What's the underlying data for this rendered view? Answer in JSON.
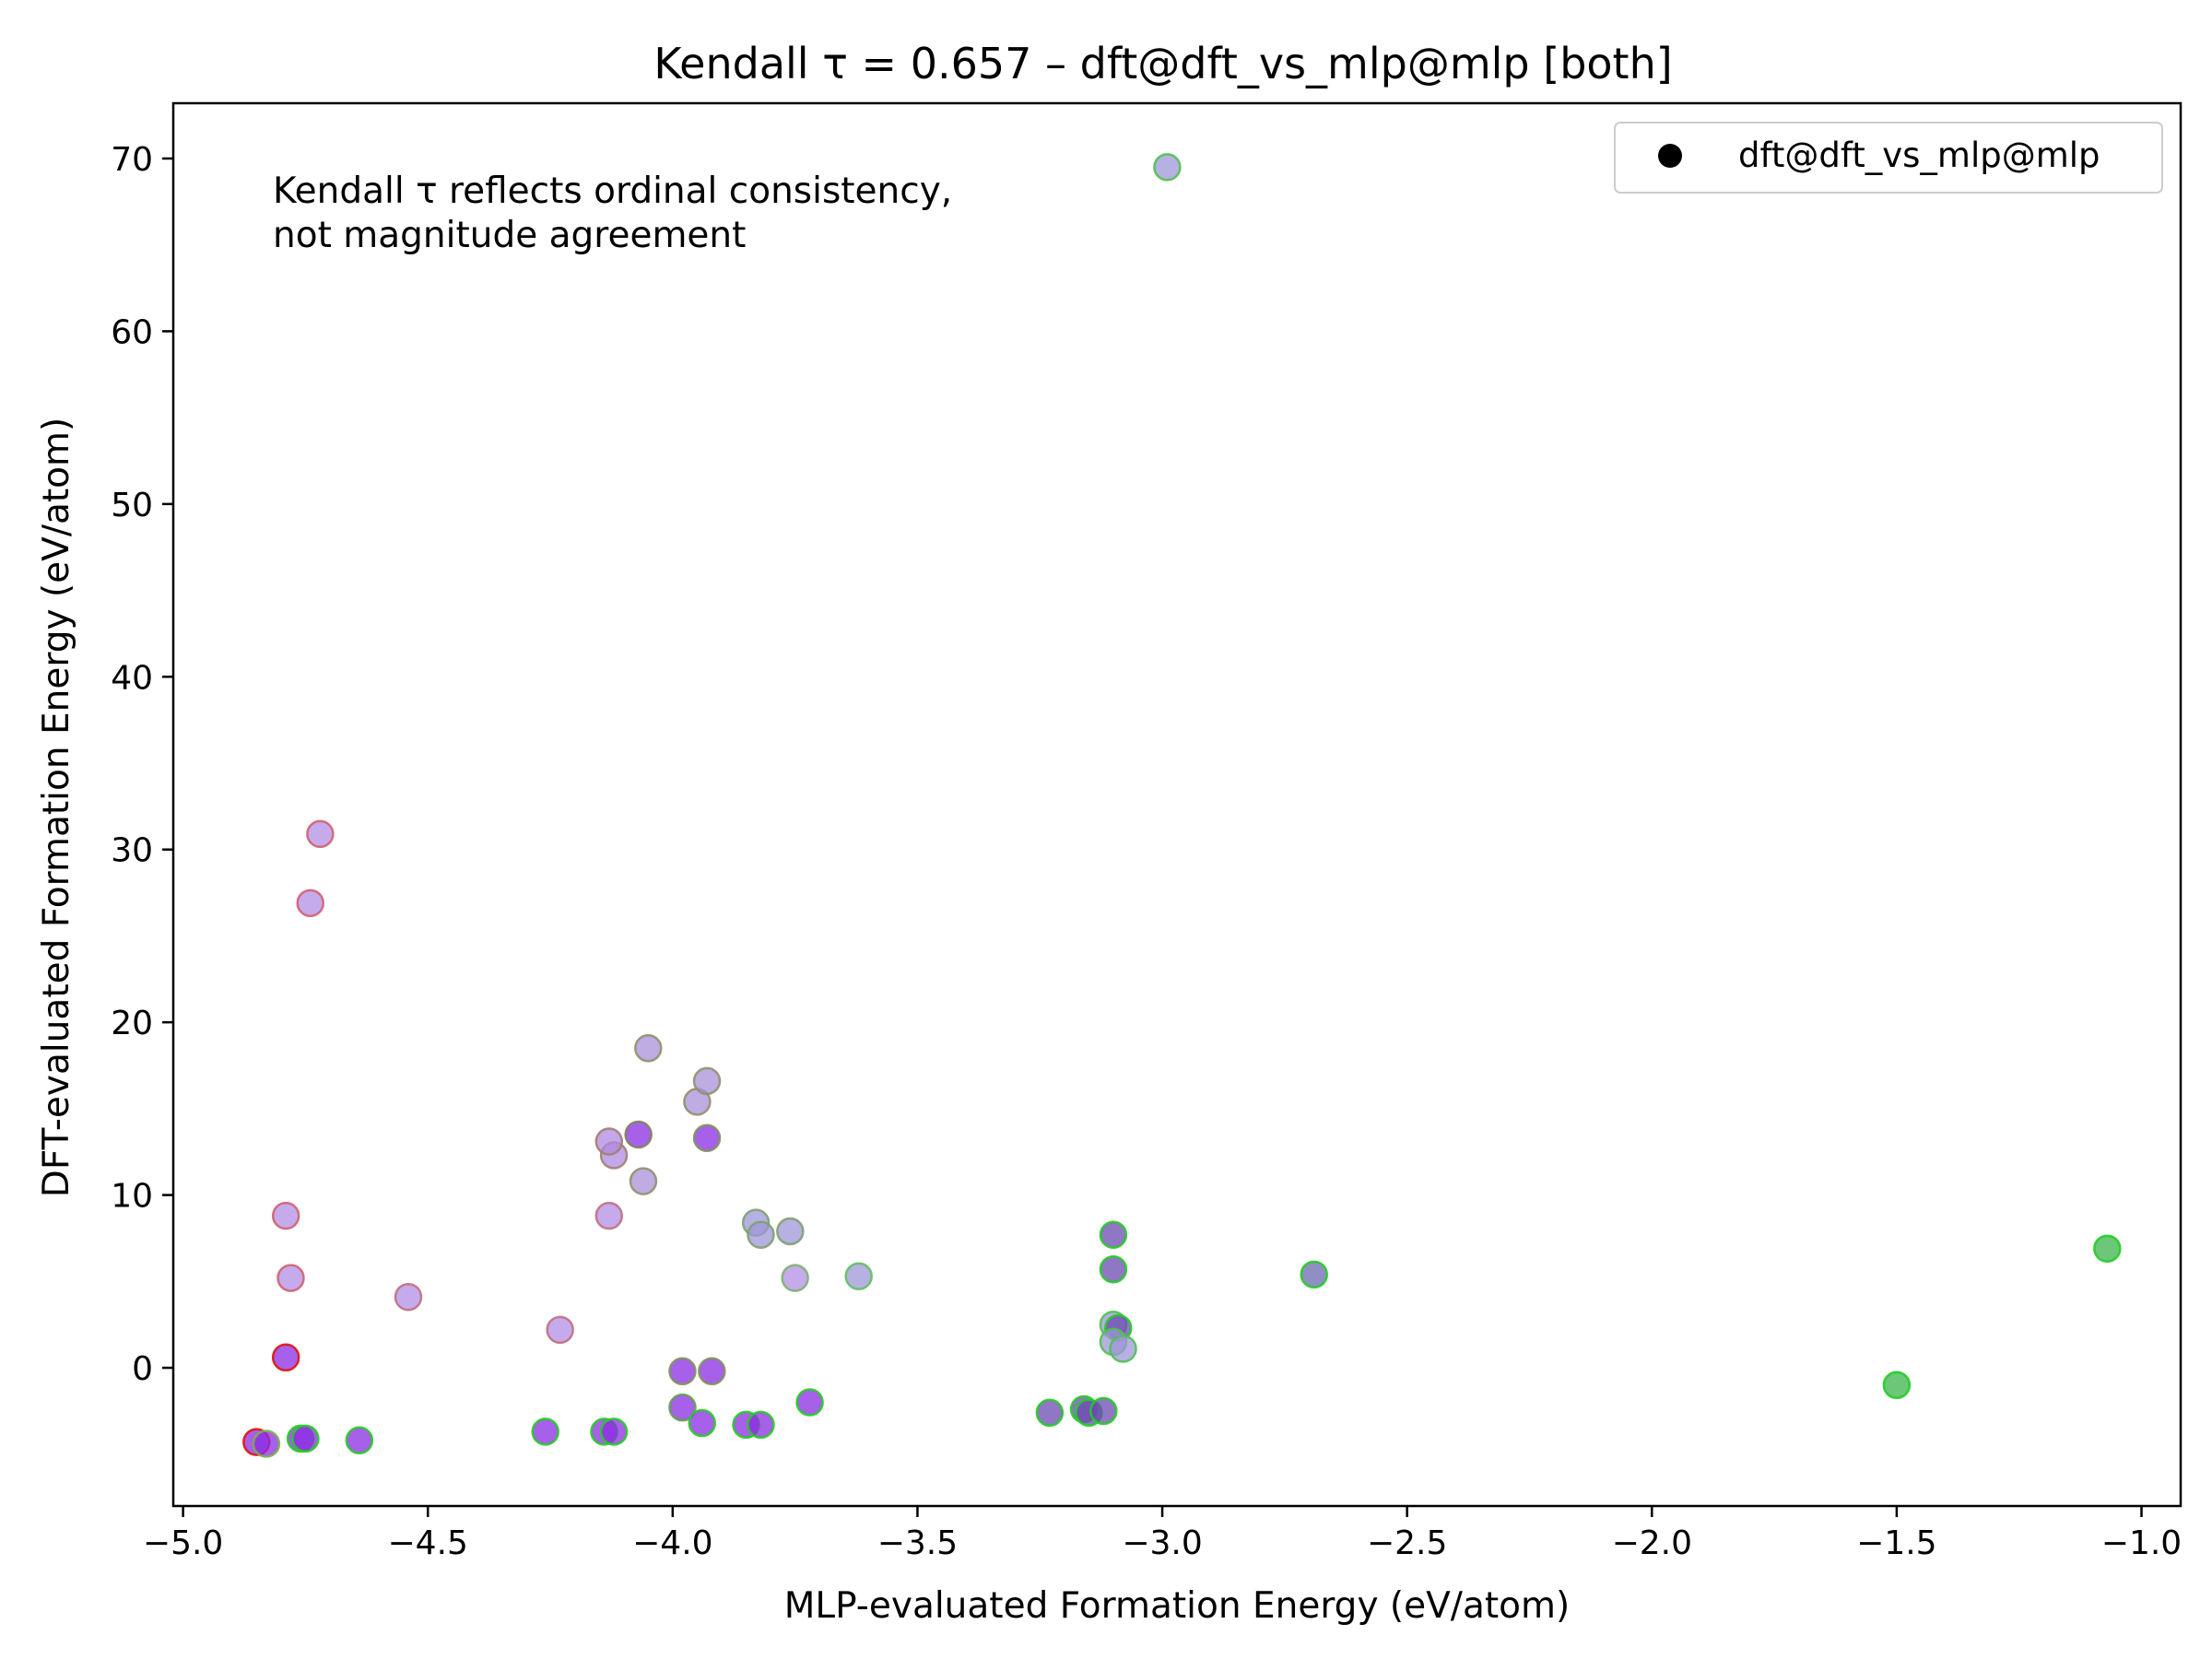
{
  "chart_data": {
    "type": "scatter",
    "title": "Kendall τ = 0.657 – dft@dft_vs_mlp@mlp [both]",
    "xlabel": "MLP-evaluated Formation Energy (eV/atom)",
    "ylabel": "DFT-evaluated Formation Energy (eV/atom)",
    "xlim": [
      -5.02,
      -0.92
    ],
    "ylim": [
      -8,
      73.2
    ],
    "xticks": [
      -5.0,
      -4.5,
      -4.0,
      -3.5,
      -3.0,
      -2.5,
      -2.0,
      -1.5,
      -1.0
    ],
    "xtick_labels": [
      "−5.0",
      "−4.5",
      "−4.0",
      "−3.5",
      "−3.0",
      "−2.5",
      "−2.0",
      "−1.5",
      "−1.0"
    ],
    "yticks": [
      0,
      10,
      20,
      30,
      40,
      50,
      60,
      70
    ],
    "ytick_labels": [
      "0",
      "10",
      "20",
      "30",
      "40",
      "50",
      "60",
      "70"
    ],
    "grid": false,
    "legend": {
      "position": "top-right",
      "entries": [
        "dft@dft_vs_mlp@mlp"
      ]
    },
    "annotation": [
      "Kendall τ reflects ordinal consistency,",
      "not magnitude agreement"
    ],
    "colors": {
      "fill_purple": "#8a2be2",
      "fill_lavender": "#b28fe6",
      "fill_gray": "#9f95d8",
      "fill_green": "#3cb44b",
      "edge_red": "#e01010",
      "edge_green": "#22cc22"
    },
    "series": [
      {
        "name": "dft@dft_vs_mlp@mlp",
        "points": [
          {
            "x": -4.85,
            "y": -4.3,
            "fill": "#8a2be2",
            "edge": "#e01010"
          },
          {
            "x": -4.83,
            "y": -4.4,
            "fill": "#8a2be2",
            "edge": "#7ab04a"
          },
          {
            "x": -4.76,
            "y": -4.1,
            "fill": "#8a2be2",
            "edge": "#22cc22"
          },
          {
            "x": -4.75,
            "y": -4.1,
            "fill": "#8a2be2",
            "edge": "#22cc22"
          },
          {
            "x": -4.64,
            "y": -4.2,
            "fill": "#8a2be2",
            "edge": "#22cc22"
          },
          {
            "x": -4.79,
            "y": 0.6,
            "fill": "#8a2be2",
            "edge": "#e01010"
          },
          {
            "x": -4.78,
            "y": 5.2,
            "fill": "#b28fe6",
            "edge": "#d06070"
          },
          {
            "x": -4.79,
            "y": 8.8,
            "fill": "#b28fe6",
            "edge": "#d06070"
          },
          {
            "x": -4.74,
            "y": 26.9,
            "fill": "#b28fe6",
            "edge": "#d06070"
          },
          {
            "x": -4.72,
            "y": 30.9,
            "fill": "#b28fe6",
            "edge": "#d06070"
          },
          {
            "x": -4.54,
            "y": 4.1,
            "fill": "#b28fe6",
            "edge": "#c07080"
          },
          {
            "x": -4.23,
            "y": 2.2,
            "fill": "#b28fe6",
            "edge": "#c07080"
          },
          {
            "x": -4.26,
            "y": -3.7,
            "fill": "#8a2be2",
            "edge": "#22cc22"
          },
          {
            "x": -4.14,
            "y": -3.7,
            "fill": "#8a2be2",
            "edge": "#22cc22"
          },
          {
            "x": -4.12,
            "y": -3.7,
            "fill": "#8a2be2",
            "edge": "#22cc22"
          },
          {
            "x": -4.13,
            "y": 8.8,
            "fill": "#b28fe6",
            "edge": "#c07080"
          },
          {
            "x": -4.12,
            "y": 12.3,
            "fill": "#b08ae0",
            "edge": "#a08070"
          },
          {
            "x": -4.13,
            "y": 13.1,
            "fill": "#b08ae0",
            "edge": "#a08070"
          },
          {
            "x": -4.07,
            "y": 13.5,
            "fill": "#8a2be2",
            "edge": "#808060"
          },
          {
            "x": -4.06,
            "y": 10.8,
            "fill": "#a890d8",
            "edge": "#909070"
          },
          {
            "x": -4.05,
            "y": 18.5,
            "fill": "#a890d8",
            "edge": "#909070"
          },
          {
            "x": -3.95,
            "y": 15.4,
            "fill": "#a890d8",
            "edge": "#909070"
          },
          {
            "x": -3.93,
            "y": 16.6,
            "fill": "#a890d8",
            "edge": "#909070"
          },
          {
            "x": -3.93,
            "y": 13.3,
            "fill": "#8a2be2",
            "edge": "#809060"
          },
          {
            "x": -3.98,
            "y": -0.2,
            "fill": "#8a2be2",
            "edge": "#809060"
          },
          {
            "x": -3.92,
            "y": -0.2,
            "fill": "#8a2be2",
            "edge": "#809060"
          },
          {
            "x": -3.98,
            "y": -2.3,
            "fill": "#8a2be2",
            "edge": "#60a050"
          },
          {
            "x": -3.94,
            "y": -3.2,
            "fill": "#8a2be2",
            "edge": "#22cc22"
          },
          {
            "x": -3.85,
            "y": -3.3,
            "fill": "#8a2be2",
            "edge": "#22cc22"
          },
          {
            "x": -3.82,
            "y": -3.3,
            "fill": "#8a2be2",
            "edge": "#22cc22"
          },
          {
            "x": -3.83,
            "y": 8.4,
            "fill": "#9f95d8",
            "edge": "#80a070"
          },
          {
            "x": -3.82,
            "y": 7.7,
            "fill": "#9f95d8",
            "edge": "#80a070"
          },
          {
            "x": -3.76,
            "y": 7.9,
            "fill": "#9f95d8",
            "edge": "#80a070"
          },
          {
            "x": -3.75,
            "y": 5.2,
            "fill": "#b28fe6",
            "edge": "#80b070"
          },
          {
            "x": -3.72,
            "y": -2.0,
            "fill": "#8a2be2",
            "edge": "#22cc22"
          },
          {
            "x": -3.62,
            "y": 5.3,
            "fill": "#9f95d8",
            "edge": "#60c060"
          },
          {
            "x": -3.23,
            "y": -2.6,
            "fill": "#6a4ab0",
            "edge": "#22cc22"
          },
          {
            "x": -3.16,
            "y": -2.4,
            "fill": "#6a4ab0",
            "edge": "#22cc22"
          },
          {
            "x": -3.15,
            "y": -2.6,
            "fill": "#6a4ab0",
            "edge": "#22cc22"
          },
          {
            "x": -3.12,
            "y": -2.5,
            "fill": "#6a4ab0",
            "edge": "#22cc22"
          },
          {
            "x": -3.1,
            "y": 7.7,
            "fill": "#6a4ab0",
            "edge": "#22cc22"
          },
          {
            "x": -3.1,
            "y": 5.7,
            "fill": "#6a4ab0",
            "edge": "#22cc22"
          },
          {
            "x": -3.1,
            "y": 2.5,
            "fill": "#9f95d8",
            "edge": "#50c050"
          },
          {
            "x": -3.09,
            "y": 2.3,
            "fill": "#6a4ab0",
            "edge": "#22cc22"
          },
          {
            "x": -3.1,
            "y": 1.5,
            "fill": "#9f95d8",
            "edge": "#50c050"
          },
          {
            "x": -3.08,
            "y": 1.1,
            "fill": "#9f95d8",
            "edge": "#50c050"
          },
          {
            "x": -2.99,
            "y": 69.5,
            "fill": "#9f95d8",
            "edge": "#50c050"
          },
          {
            "x": -2.69,
            "y": 5.4,
            "fill": "#6a6ab0",
            "edge": "#22cc22"
          },
          {
            "x": -1.5,
            "y": -1.0,
            "fill": "#3cb44b",
            "edge": "#22cc22"
          },
          {
            "x": -1.07,
            "y": 6.9,
            "fill": "#3cb44b",
            "edge": "#22cc22"
          }
        ]
      }
    ]
  }
}
